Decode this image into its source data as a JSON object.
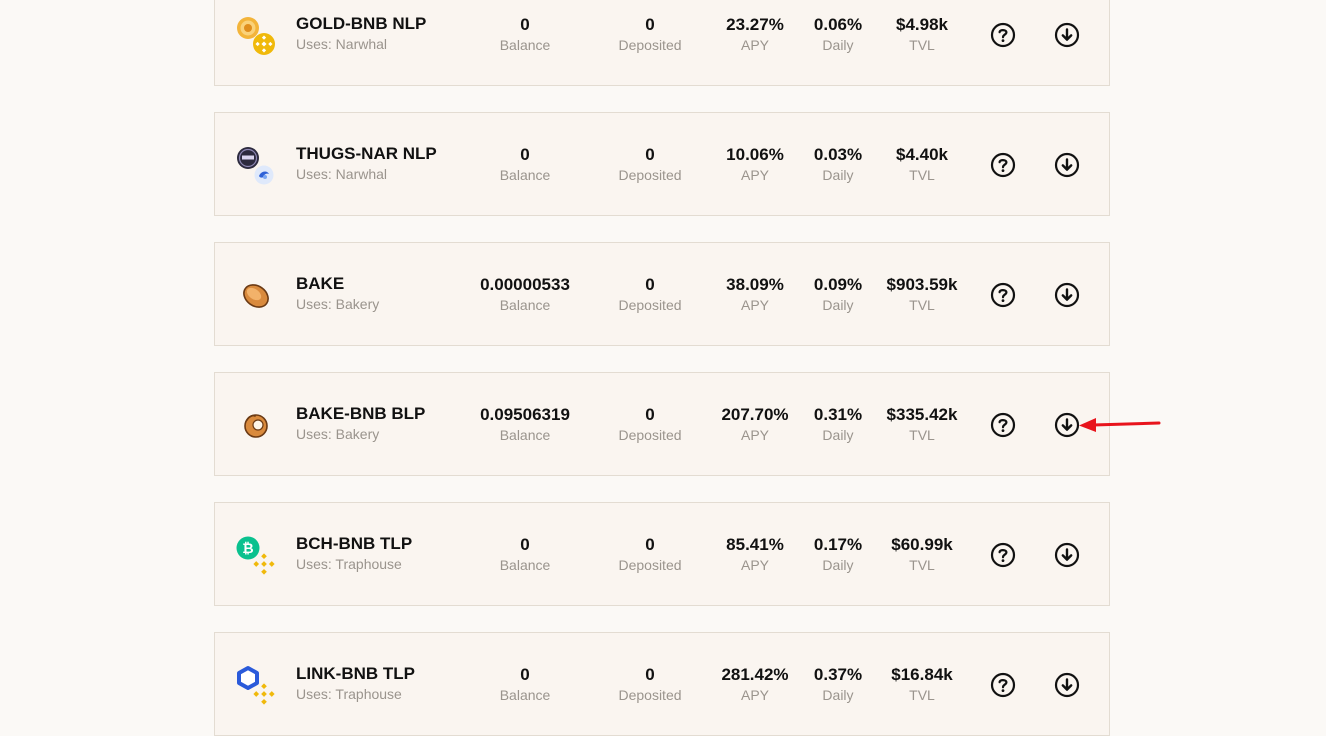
{
  "pools": [
    {
      "name": "GOLD-BNB NLP",
      "uses": "Uses: Narwhal",
      "icon": "gold-bnb-icon",
      "balance": "0",
      "deposited": "0",
      "apy": "23.27%",
      "daily": "0.06%",
      "tvl": "$4.98k"
    },
    {
      "name": "THUGS-NAR NLP",
      "uses": "Uses: Narwhal",
      "icon": "thugs-nar-icon",
      "balance": "0",
      "deposited": "0",
      "apy": "10.06%",
      "daily": "0.03%",
      "tvl": "$4.40k"
    },
    {
      "name": "BAKE",
      "uses": "Uses: Bakery",
      "icon": "bake-icon",
      "balance": "0.00000533",
      "deposited": "0",
      "apy": "38.09%",
      "daily": "0.09%",
      "tvl": "$903.59k"
    },
    {
      "name": "BAKE-BNB BLP",
      "uses": "Uses: Bakery",
      "icon": "bake-bnb-icon",
      "balance": "0.09506319",
      "deposited": "0",
      "apy": "207.70%",
      "daily": "0.31%",
      "tvl": "$335.42k"
    },
    {
      "name": "BCH-BNB TLP",
      "uses": "Uses: Traphouse",
      "icon": "bch-bnb-icon",
      "balance": "0",
      "deposited": "0",
      "apy": "85.41%",
      "daily": "0.17%",
      "tvl": "$60.99k"
    },
    {
      "name": "LINK-BNB TLP",
      "uses": "Uses: Traphouse",
      "icon": "link-bnb-icon",
      "balance": "0",
      "deposited": "0",
      "apy": "281.42%",
      "daily": "0.37%",
      "tvl": "$16.84k"
    }
  ],
  "labels": {
    "balance": "Balance",
    "deposited": "Deposited",
    "apy": "APY",
    "daily": "Daily",
    "tvl": "TVL"
  },
  "colors": {
    "card_bg": "#faf5f0",
    "card_border": "#e3dcd2",
    "muted_text": "#9a948d",
    "annotation_arrow": "#e8141c",
    "bnb_yellow": "#f0b90b",
    "bch_green": "#0ac18e",
    "link_blue": "#2a5ada"
  },
  "annotation": {
    "type": "red-arrow",
    "points_to": "deposit-button of BAKE-BNB BLP"
  }
}
